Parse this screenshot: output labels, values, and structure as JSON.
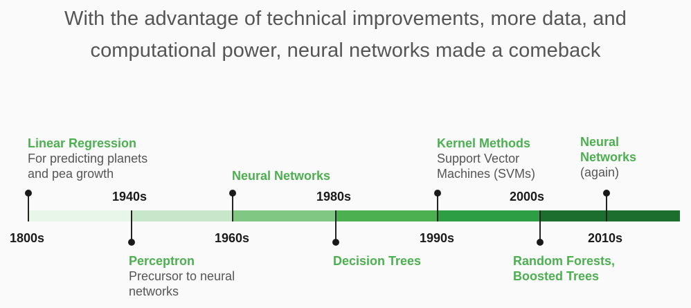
{
  "title": {
    "line1": "With the advantage of technical improvements, more data, and",
    "line2": "computational power, neural networks made a comeback"
  },
  "colors": {
    "segments": [
      "#e8f5e9",
      "#c8e6c9",
      "#81c784",
      "#4caf50",
      "#2e9e44",
      "#1b6e2e"
    ],
    "accent": "#4caf50"
  },
  "eras": {
    "e1800s": "1800s",
    "e1940s": "1940s",
    "e1960s": "1960s",
    "e1980s": "1980s",
    "e1990s": "1990s",
    "e2000s": "2000s",
    "e2010s": "2010s"
  },
  "events": {
    "linear_regression": {
      "name": "Linear Regression",
      "desc1": "For predicting planets",
      "desc2": "and pea growth"
    },
    "perceptron": {
      "name": "Perceptron",
      "desc1": "Precursor to neural",
      "desc2": "networks"
    },
    "neural_networks": {
      "name": "Neural Networks"
    },
    "decision_trees": {
      "name": "Decision Trees"
    },
    "kernel_methods": {
      "name": "Kernel Methods",
      "desc1": "Support Vector",
      "desc2": "Machines (SVMs)"
    },
    "random_forests": {
      "name1": "Random Forests,",
      "name2": "Boosted Trees"
    },
    "neural_networks_again": {
      "name1": "Neural",
      "name2": "Networks",
      "desc": "(again)"
    }
  }
}
